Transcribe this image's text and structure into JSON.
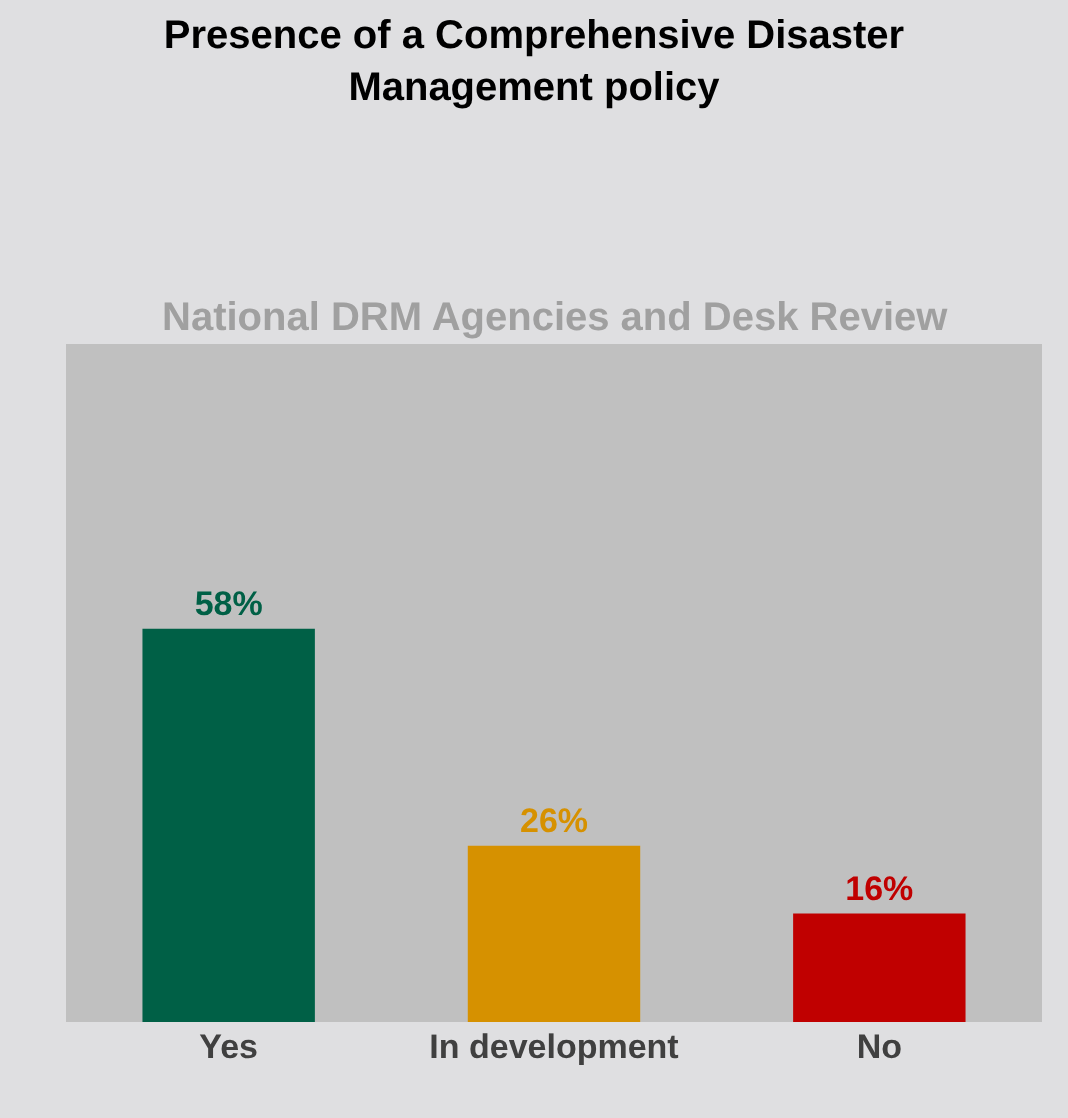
{
  "chart_data": {
    "type": "bar",
    "title": "Presence of a Comprehensive Disaster\nManagement policy",
    "subtitle": "National DRM Agencies and Desk Review",
    "categories": [
      "Yes",
      "In development",
      "No"
    ],
    "values": [
      58,
      26,
      16
    ],
    "value_labels": [
      "58%",
      "26%",
      "16%"
    ],
    "colors": [
      "#006046",
      "#d69100",
      "#c00000"
    ],
    "ylim": [
      0,
      100
    ]
  }
}
